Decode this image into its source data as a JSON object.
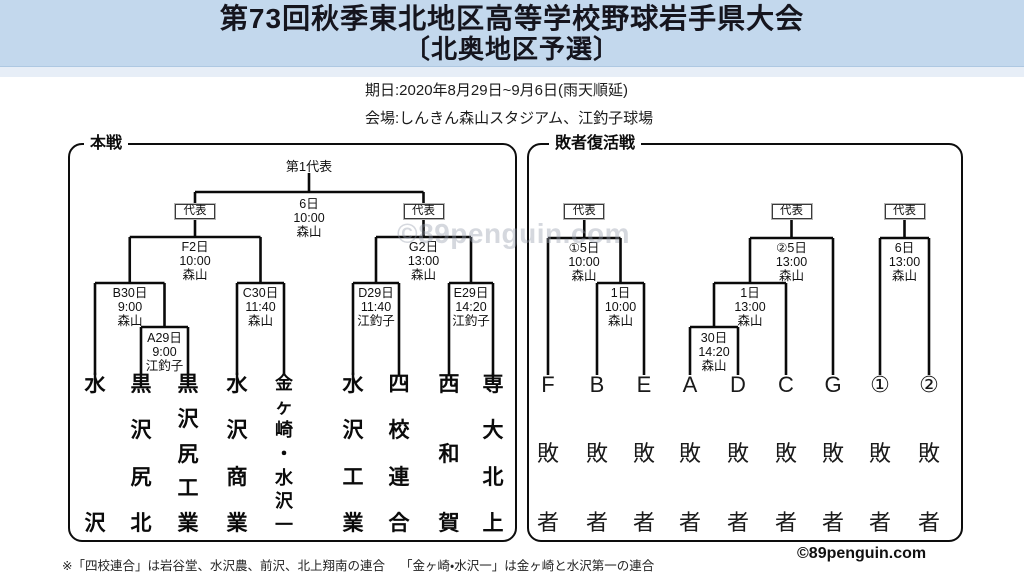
{
  "header": {
    "title_line1": "第73回秋季東北地区高等学校野球岩手県大会",
    "title_line2": "〔北奥地区予選〕",
    "date_line": "期日:2020年8月29日~9月6日(雨天順延)",
    "venue_line": "会場:しんきん森山スタジアム、江釣子球場"
  },
  "main": {
    "label": "本戦",
    "champion_label": "第1代表",
    "rep_label": "代表",
    "final": {
      "date": "6日",
      "time": "10:00",
      "venue": "森山"
    },
    "games": {
      "A": {
        "date": "A29日",
        "time": "9:00",
        "venue": "江釣子"
      },
      "B": {
        "date": "B30日",
        "time": "9:00",
        "venue": "森山"
      },
      "C": {
        "date": "C30日",
        "time": "11:40",
        "venue": "森山"
      },
      "D": {
        "date": "D29日",
        "time": "11:40",
        "venue": "江釣子"
      },
      "E": {
        "date": "E29日",
        "time": "14:20",
        "venue": "江釣子"
      },
      "F": {
        "date": "F2日",
        "time": "10:00",
        "venue": "森山"
      },
      "G": {
        "date": "G2日",
        "time": "13:00",
        "venue": "森山"
      }
    },
    "teams": [
      "水沢",
      "黒沢尻北",
      "黒沢尻工業",
      "水沢商業",
      "金ヶ崎・水沢一",
      "水沢工業",
      "四校連合",
      "西和賀",
      "専大北上"
    ]
  },
  "consolation": {
    "label": "敗者復活戦",
    "rep_label": "代表",
    "games": {
      "round1_final": {
        "date": "①5日",
        "time": "10:00",
        "venue": "森山"
      },
      "round1_semi": {
        "date": "1日",
        "time": "10:00",
        "venue": "森山"
      },
      "round2_final": {
        "date": "②5日",
        "time": "13:00",
        "venue": "森山"
      },
      "round2_semi": {
        "date": "1日",
        "time": "13:00",
        "venue": "森山"
      },
      "round2_first": {
        "date": "30日",
        "time": "14:20",
        "venue": "森山"
      },
      "round3_final": {
        "date": "6日",
        "time": "13:00",
        "venue": "森山"
      }
    },
    "teams": [
      "F敗者",
      "B敗者",
      "E敗者",
      "A敗者",
      "D敗者",
      "C敗者",
      "G敗者",
      "①敗者",
      "②敗者"
    ]
  },
  "footer": {
    "note1": "※「四校連合」は岩谷堂、水沢農、前沢、北上翔南の連合",
    "note2": "「金ヶ崎・水沢一」は金ヶ崎と水沢第一の連合",
    "copyright": "©89penguin.com"
  },
  "watermark": "©89penguin.com",
  "colors": {
    "header_bg": "#c3d8ed",
    "header_bg_light": "#e7eef7",
    "title_text": "#15151e",
    "line": "#0a0a0a",
    "watermark": "#969eac"
  }
}
